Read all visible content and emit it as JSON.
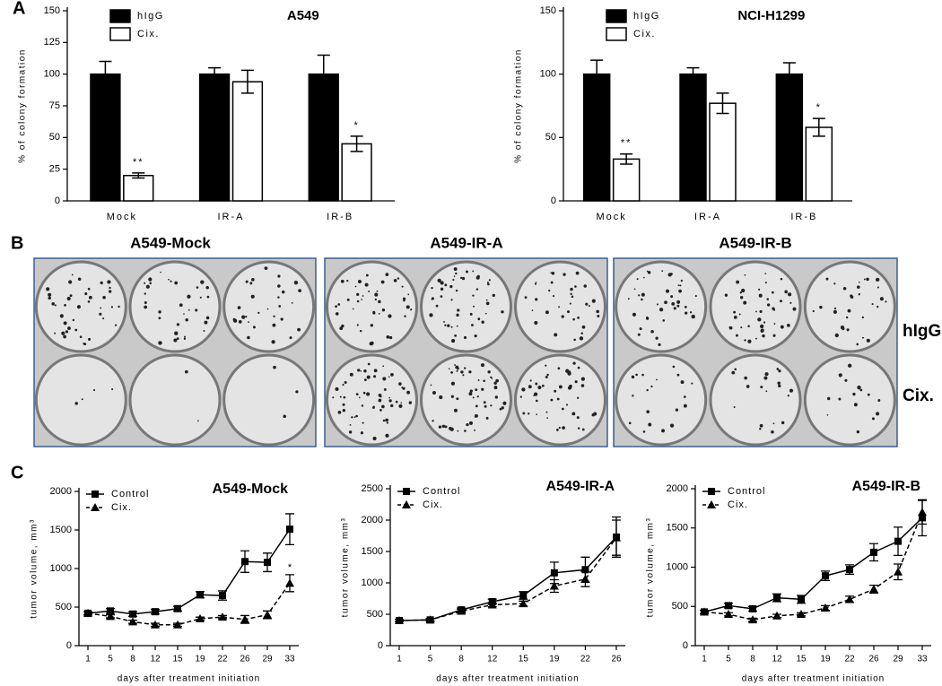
{
  "panel_labels": [
    "A",
    "B",
    "C"
  ],
  "photos": {
    "titles": [
      "A549-Mock",
      "A549-IR-A",
      "A549-IR-B"
    ],
    "row_labels": [
      "hIgG",
      "Cix."
    ]
  },
  "chart_data": [
    {
      "type": "bar",
      "title": "A549",
      "y_label": "% of colony formation",
      "categories": [
        "Mock",
        "IR-A",
        "IR-B"
      ],
      "ylim": [
        0,
        150
      ],
      "yticks": [
        0,
        25,
        50,
        75,
        100,
        125,
        150
      ],
      "series": [
        {
          "name": "hIgG",
          "color": "#000000",
          "values": [
            100,
            100,
            100
          ],
          "errors": [
            10,
            5,
            15
          ]
        },
        {
          "name": "Cix.",
          "color": "#ffffff",
          "values": [
            20,
            94,
            45
          ],
          "errors": [
            2,
            9,
            6
          ],
          "significance": [
            "**",
            null,
            "*"
          ]
        }
      ]
    },
    {
      "type": "bar",
      "title": "NCI-H1299",
      "y_label": "% of colony formation",
      "categories": [
        "Mock",
        "IR-A",
        "IR-B"
      ],
      "ylim": [
        0,
        150
      ],
      "yticks": [
        0,
        50,
        100,
        150
      ],
      "series": [
        {
          "name": "hIgG",
          "color": "#000000",
          "values": [
            100,
            100,
            100
          ],
          "errors": [
            11,
            5,
            9
          ]
        },
        {
          "name": "Cix.",
          "color": "#ffffff",
          "values": [
            33,
            77,
            58
          ],
          "errors": [
            4,
            8,
            7
          ],
          "significance": [
            "**",
            null,
            "*"
          ]
        }
      ]
    },
    {
      "type": "line",
      "title": "A549-Mock",
      "y_label": "tumor volume, mm³",
      "x_label": "days after treatment initiation",
      "categories": [
        "1",
        "5",
        "8",
        "12",
        "15",
        "19",
        "22",
        "26",
        "29",
        "33"
      ],
      "ylim": [
        0,
        2000
      ],
      "yticks": [
        0,
        500,
        1000,
        1500,
        2000
      ],
      "series": [
        {
          "name": "Control",
          "color": "#000000",
          "marker": "square",
          "dashed": false,
          "values": [
            420,
            450,
            410,
            440,
            480,
            660,
            650,
            1090,
            1080,
            1510
          ],
          "errors": [
            20,
            30,
            30,
            30,
            30,
            40,
            60,
            140,
            120,
            200
          ]
        },
        {
          "name": "Cix.",
          "color": "#000000",
          "marker": "triangle",
          "dashed": true,
          "values": [
            420,
            380,
            310,
            270,
            270,
            350,
            370,
            340,
            400,
            810
          ],
          "errors": [
            20,
            20,
            20,
            20,
            20,
            20,
            20,
            50,
            50,
            110
          ],
          "significance": [
            null,
            null,
            null,
            null,
            null,
            null,
            null,
            null,
            null,
            "*"
          ]
        }
      ]
    },
    {
      "type": "line",
      "title": "A549-IR-A",
      "y_label": "tumor volume, mm³",
      "x_label": "days after treatment initiation",
      "categories": [
        "1",
        "5",
        "8",
        "12",
        "15",
        "19",
        "22",
        "26"
      ],
      "ylim": [
        0,
        2500
      ],
      "yticks": [
        0,
        500,
        1000,
        1500,
        2000,
        2500
      ],
      "series": [
        {
          "name": "Control",
          "color": "#000000",
          "marker": "square",
          "dashed": false,
          "values": [
            400,
            410,
            570,
            700,
            800,
            1160,
            1210,
            1730
          ],
          "errors": [
            20,
            20,
            30,
            40,
            60,
            170,
            200,
            320
          ]
        },
        {
          "name": "Cix.",
          "color": "#000000",
          "marker": "triangle",
          "dashed": true,
          "values": [
            400,
            410,
            550,
            650,
            670,
            950,
            1060,
            1720
          ],
          "errors": [
            20,
            20,
            30,
            30,
            40,
            100,
            120,
            280
          ]
        }
      ]
    },
    {
      "type": "line",
      "title": "A549-IR-B",
      "y_label": "tumor volume, mm³",
      "x_label": "days after treatment initiation",
      "categories": [
        "1",
        "5",
        "8",
        "12",
        "15",
        "19",
        "22",
        "26",
        "29",
        "33"
      ],
      "ylim": [
        0,
        2000
      ],
      "yticks": [
        0,
        500,
        1000,
        1500,
        2000
      ],
      "series": [
        {
          "name": "Control",
          "color": "#000000",
          "marker": "square",
          "dashed": false,
          "values": [
            430,
            510,
            470,
            610,
            590,
            890,
            970,
            1190,
            1330,
            1630
          ],
          "errors": [
            20,
            30,
            30,
            50,
            50,
            60,
            60,
            110,
            180,
            230
          ]
        },
        {
          "name": "Cix.",
          "color": "#000000",
          "marker": "triangle",
          "dashed": true,
          "values": [
            430,
            400,
            330,
            380,
            400,
            480,
            590,
            720,
            940,
            1700
          ],
          "errors": [
            20,
            20,
            20,
            20,
            20,
            30,
            40,
            50,
            100,
            150
          ]
        }
      ]
    }
  ]
}
